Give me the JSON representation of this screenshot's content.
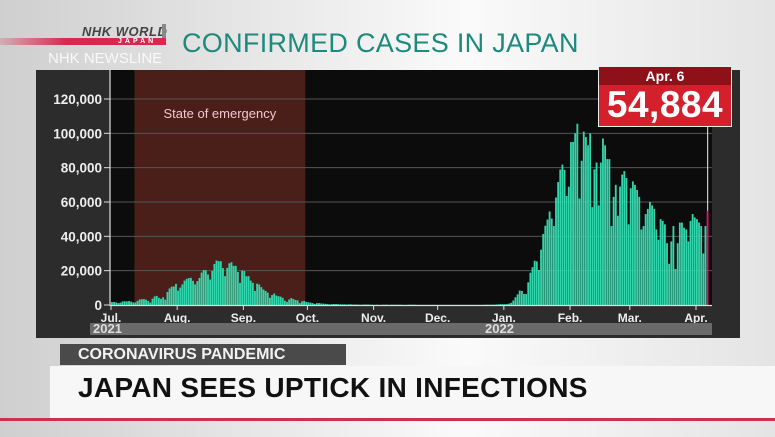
{
  "branding": {
    "logo_top": "NHK WORLD",
    "logo_bottom": "JAPAN",
    "program": "NHK NEWSLINE"
  },
  "title": "CONFIRMED CASES IN JAPAN",
  "callout": {
    "date": "Apr. 6",
    "value": "54,884"
  },
  "tag": "CORONAVIRUS PANDEMIC",
  "headline": "JAPAN SEES UPTICK IN INFECTIONS",
  "colors": {
    "bars": "#33d6ac",
    "latest_bar": "#d0186e",
    "emergency": "#4a1f1a",
    "callout": "#d4202c",
    "title": "#1e8a7c"
  },
  "chart_data": {
    "type": "bar",
    "title": "CONFIRMED CASES IN JAPAN",
    "start_date": "2021-07-01",
    "end_date": "2022-04-06",
    "ylim": [
      0,
      120000
    ],
    "yticks": [
      "0",
      "20,000",
      "40,000",
      "60,000",
      "80,000",
      "100,000",
      "120,000"
    ],
    "ytick_values": [
      0,
      20000,
      40000,
      60000,
      80000,
      100000,
      120000
    ],
    "xticks": [
      {
        "label": "Jul.",
        "date": "2021-07-01"
      },
      {
        "label": "Aug.",
        "date": "2021-08-01"
      },
      {
        "label": "Sep.",
        "date": "2021-09-01"
      },
      {
        "label": "Oct.",
        "date": "2021-10-01"
      },
      {
        "label": "Nov.",
        "date": "2021-11-01"
      },
      {
        "label": "Dec.",
        "date": "2021-12-01"
      },
      {
        "label": "Jan.",
        "date": "2022-01-01"
      },
      {
        "label": "Feb.",
        "date": "2022-02-01"
      },
      {
        "label": "Mar.",
        "date": "2022-03-01"
      },
      {
        "label": "Apr.",
        "date": "2022-04-01"
      }
    ],
    "years": [
      {
        "label": "2021"
      },
      {
        "label": "2022"
      }
    ],
    "grid": true,
    "annotation": {
      "label": "State of emergency",
      "start": "2021-07-12",
      "end": "2021-09-30"
    },
    "highlight": {
      "date": "2022-04-06",
      "value": 54884
    },
    "daily_values": [
      1700,
      1800,
      1500,
      1100,
      1400,
      2100,
      2200,
      2100,
      2300,
      2000,
      1500,
      1500,
      2400,
      3200,
      3400,
      3400,
      3100,
      2300,
      1400,
      3700,
      5000,
      5300,
      4200,
      3600,
      4500,
      3100,
      7600,
      9600,
      10700,
      10800,
      12300,
      8400,
      10100,
      12000,
      14200,
      15200,
      15700,
      15800,
      14100,
      12000,
      13900,
      15800,
      18900,
      20400,
      20200,
      17800,
      14800,
      19900,
      23900,
      25900,
      25500,
      25500,
      21500,
      16800,
      21600,
      24300,
      24900,
      22800,
      22800,
      19200,
      12900,
      20100,
      19800,
      16700,
      16800,
      14200,
      12900,
      8200,
      12400,
      12000,
      10400,
      9000,
      8200,
      7200,
      4200,
      5800,
      6700,
      5500,
      5100,
      4900,
      4200,
      2500,
      1800,
      3200,
      4000,
      3500,
      2900,
      2700,
      1100,
      2100,
      2400,
      1800,
      1600,
      1400,
      1100,
      600,
      1100,
      1100,
      900,
      800,
      700,
      600,
      400,
      500,
      600,
      600,
      500,
      400,
      400,
      400,
      300,
      400,
      400,
      300,
      300,
      300,
      200,
      200,
      300,
      300,
      300,
      200,
      200,
      100,
      200,
      100,
      100,
      200,
      200,
      200,
      100,
      200,
      200,
      200,
      200,
      200,
      100,
      100,
      100,
      200,
      200,
      200,
      200,
      100,
      100,
      100,
      100,
      100,
      100,
      100,
      100,
      100,
      100,
      100,
      100,
      100,
      100,
      100,
      100,
      100,
      100,
      100,
      100,
      100,
      100,
      100,
      100,
      100,
      100,
      100,
      100,
      100,
      100,
      100,
      100,
      200,
      200,
      200,
      200,
      200,
      300,
      400,
      500,
      500,
      500,
      500,
      800,
      1300,
      2600,
      4500,
      6200,
      8400,
      8200,
      6400,
      6400,
      13200,
      18800,
      22000,
      25800,
      25400,
      20400,
      32200,
      41400,
      46200,
      49800,
      54500,
      50400,
      46000,
      62600,
      71600,
      78900,
      81800,
      78700,
      63500,
      68900,
      94900,
      95000,
      100000,
      105600,
      62000,
      84000,
      101000,
      97800,
      93000,
      100000,
      57000,
      79000,
      83000,
      58000,
      83000,
      97000,
      93000,
      85000,
      85000,
      46000,
      63000,
      70000,
      52000,
      69000,
      76000,
      78000,
      74000,
      47000,
      68000,
      72000,
      70000,
      67000,
      63000,
      44000,
      46000,
      53000,
      56000,
      60000,
      58000,
      56000,
      44000,
      38000,
      50000,
      49000,
      47000,
      36000,
      24000,
      37000,
      46000,
      21000,
      36000,
      48000,
      48000,
      45000,
      44000,
      37000,
      49000,
      53000,
      51000,
      50000,
      48000,
      46000,
      30000,
      46000,
      54884
    ]
  }
}
